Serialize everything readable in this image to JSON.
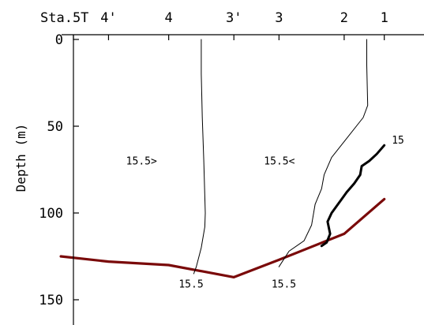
{
  "chart_data": {
    "type": "line",
    "title": "",
    "ylabel": "Depth (m)",
    "ylim": [
      0,
      150
    ],
    "y_inverted": true,
    "grid": false,
    "stations": [
      {
        "label": "Sta.5T",
        "x": 0.0
      },
      {
        "label": "4'",
        "x": 0.7
      },
      {
        "label": "4",
        "x": 1.9
      },
      {
        "label": "3'",
        "x": 3.2
      },
      {
        "label": "3",
        "x": 4.1
      },
      {
        "label": "2",
        "x": 5.4
      },
      {
        "label": "1",
        "x": 6.2
      }
    ],
    "y_ticks": [
      0,
      50,
      100,
      150
    ],
    "series": [
      {
        "role": "bottom_topography",
        "color": "#7a0a0a",
        "points": [
          [
            -0.25,
            125
          ],
          [
            0.7,
            128
          ],
          [
            1.9,
            130
          ],
          [
            3.2,
            137
          ],
          [
            4.1,
            127
          ],
          [
            5.4,
            112
          ],
          [
            6.2,
            92
          ]
        ]
      },
      {
        "role": "isotherm",
        "color": "#000000",
        "label": "15.5",
        "points": [
          [
            2.55,
            0
          ],
          [
            2.55,
            20
          ],
          [
            2.57,
            45
          ],
          [
            2.6,
            70
          ],
          [
            2.63,
            100
          ],
          [
            2.62,
            108
          ],
          [
            2.55,
            120
          ],
          [
            2.45,
            131
          ],
          [
            2.4,
            135
          ]
        ]
      },
      {
        "role": "isotherm",
        "color": "#000000",
        "label": "15.5",
        "points": [
          [
            5.85,
            0
          ],
          [
            5.85,
            15
          ],
          [
            5.87,
            38
          ],
          [
            5.78,
            45
          ],
          [
            5.45,
            57
          ],
          [
            5.15,
            68
          ],
          [
            5.0,
            78
          ],
          [
            4.95,
            86
          ],
          [
            4.82,
            95
          ],
          [
            4.75,
            107
          ],
          [
            4.6,
            116
          ],
          [
            4.3,
            122
          ],
          [
            4.1,
            131
          ]
        ]
      },
      {
        "role": "isotherm",
        "color": "#000000",
        "label": "15",
        "points": [
          [
            6.2,
            61
          ],
          [
            6.05,
            66
          ],
          [
            5.9,
            70
          ],
          [
            5.75,
            73
          ],
          [
            5.72,
            78
          ],
          [
            5.6,
            83
          ],
          [
            5.45,
            88
          ],
          [
            5.3,
            94
          ],
          [
            5.15,
            100
          ],
          [
            5.07,
            105
          ],
          [
            5.12,
            112
          ],
          [
            5.05,
            117
          ],
          [
            4.95,
            119
          ]
        ]
      }
    ],
    "annotations": [
      {
        "text": "15.5>",
        "x": 1.05,
        "y": 72
      },
      {
        "text": "15.5<",
        "x": 3.8,
        "y": 72
      },
      {
        "text": "15",
        "x": 6.35,
        "y": 60
      },
      {
        "text": "15.5",
        "x": 2.1,
        "y": 143
      },
      {
        "text": "15.5",
        "x": 3.95,
        "y": 143
      }
    ]
  }
}
